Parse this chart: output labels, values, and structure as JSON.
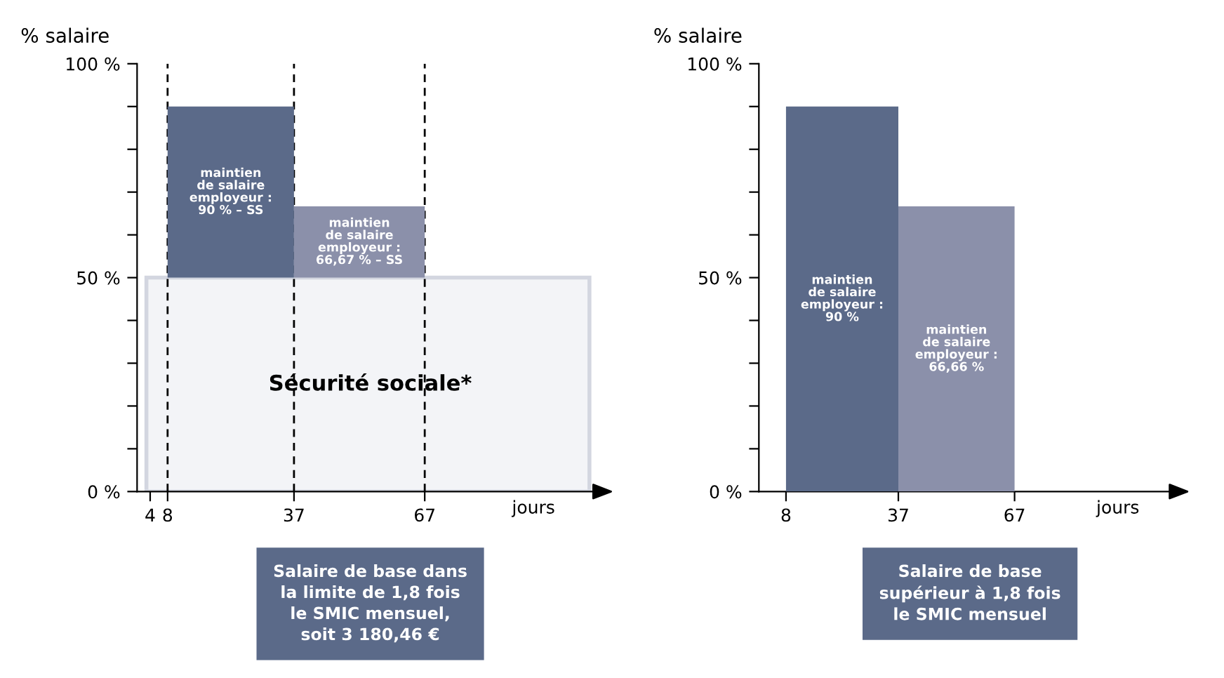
{
  "chart_data": [
    {
      "type": "histogram",
      "bins": [
        8,
        37,
        67
      ],
      "values": [
        40,
        16.67
      ],
      "base": [
        50,
        50
      ],
      "colors": [
        "#5b6a89",
        "#8b90aa"
      ],
      "xlim": [
        1,
        108
      ],
      "xticks": [
        4,
        8,
        37,
        67
      ],
      "ylim": [
        0,
        100
      ],
      "yticks": [
        {
          "value": 0,
          "label": "0 %"
        },
        {
          "value": 10,
          "label": null
        },
        {
          "value": 20,
          "label": null
        },
        {
          "value": 30,
          "label": null
        },
        {
          "value": 40,
          "label": null
        },
        {
          "value": 50,
          "label": "50 %"
        },
        {
          "value": 60,
          "label": null
        },
        {
          "value": 70,
          "label": null
        },
        {
          "value": 80,
          "label": null
        },
        {
          "value": 90,
          "label": null
        },
        {
          "value": 100,
          "label": "100 %"
        }
      ],
      "xlabel": "jours",
      "ylabel": "% salaire",
      "bands": [
        {
          "axis": "y",
          "from": 0,
          "to": 50,
          "label": "Sécurité sociale*",
          "color": "#d3d6e0"
        }
      ],
      "ref_lines": [
        {
          "axis": "x",
          "value": 8,
          "line_style": "dashed",
          "color": "#000000"
        },
        {
          "axis": "x",
          "value": 37,
          "line_style": "dashed",
          "color": "#000000"
        },
        {
          "axis": "x",
          "value": 67,
          "line_style": "dashed",
          "color": "#000000"
        }
      ],
      "annotations": [
        "maintien\nde salaire\nemployeur :\n90 % – SS",
        "maintien\nde salaire\nemployeur :\n66,67 % – SS",
        "Salaire de base dans\nla limite de 1,8 fois\nle SMIC mensuel,\nsoit 3 180,46 €"
      ]
    },
    {
      "type": "histogram",
      "bins": [
        8,
        37,
        67
      ],
      "values": [
        90,
        66.66
      ],
      "colors": [
        "#5b6a89",
        "#8b90aa"
      ],
      "xlim": [
        1,
        110
      ],
      "xticks": [
        8,
        37,
        67
      ],
      "ylim": [
        0,
        100
      ],
      "yticks": [
        {
          "value": 0,
          "label": "0 %"
        },
        {
          "value": 10,
          "label": null
        },
        {
          "value": 20,
          "label": null
        },
        {
          "value": 30,
          "label": null
        },
        {
          "value": 40,
          "label": null
        },
        {
          "value": 50,
          "label": "50 %"
        },
        {
          "value": 60,
          "label": null
        },
        {
          "value": 70,
          "label": null
        },
        {
          "value": 80,
          "label": null
        },
        {
          "value": 90,
          "label": null
        },
        {
          "value": 100,
          "label": "100 %"
        }
      ],
      "xlabel": "jours",
      "ylabel": "% salaire",
      "annotations": [
        "maintien\nde salaire\nemployeur :\n90 %",
        "maintien\nde salaire\nemployeur :\n66,66 %",
        "Salaire de base\nsupérieur à 1,8 fois\nle SMIC mensuel"
      ]
    }
  ]
}
